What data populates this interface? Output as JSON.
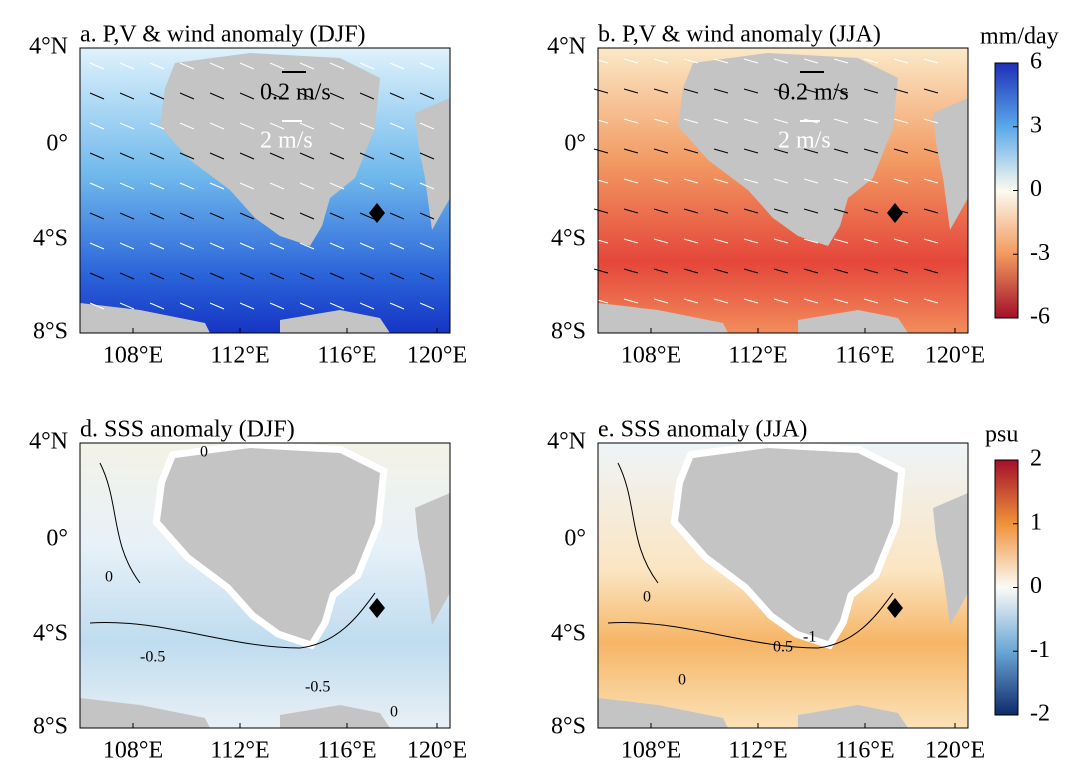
{
  "panels": [
    {
      "title": "a. P,V & wind anomaly (DJF)",
      "ref_arrows": [
        "0.2 m/s",
        "2 m/s"
      ]
    },
    {
      "title": "b. P,V & wind anomaly (JJA)",
      "ref_arrows": [
        "0.2 m/s",
        "2 m/s"
      ]
    },
    {
      "title": "d. SSS anomaly (DJF)",
      "contour_labels": [
        "0",
        "0",
        "-0.5",
        "-0.5",
        "0"
      ]
    },
    {
      "title": "e. SSS anomaly (JJA)",
      "contour_labels": [
        "0",
        "0",
        "-1",
        "0.5"
      ]
    }
  ],
  "lat_ticks": [
    "4°N",
    "0°",
    "4°S",
    "8°S"
  ],
  "lon_ticks": [
    "108°E",
    "112°E",
    "116°E",
    "120°E"
  ],
  "colorbars": [
    {
      "unit": "mm/day",
      "ticks": [
        6,
        3,
        0,
        -3,
        -6
      ]
    },
    {
      "unit": "psu",
      "ticks": [
        2,
        1,
        0,
        -1,
        -2
      ]
    }
  ]
}
